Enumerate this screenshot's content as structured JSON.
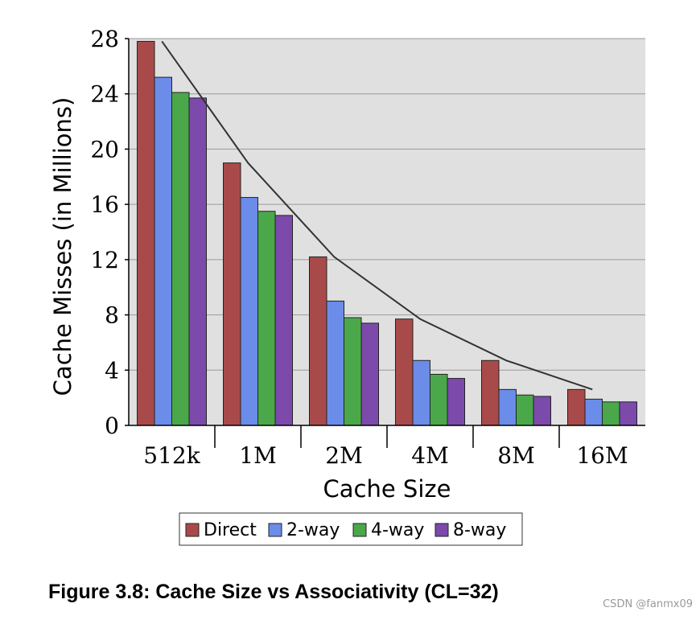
{
  "chart_data": {
    "type": "bar",
    "categories": [
      "512k",
      "1M",
      "2M",
      "4M",
      "8M",
      "16M"
    ],
    "series": [
      {
        "name": "Direct",
        "color": "#a94a4a",
        "values": [
          27.8,
          19.0,
          12.2,
          7.7,
          4.7,
          2.6
        ]
      },
      {
        "name": "2-way",
        "color": "#6b8ce8",
        "values": [
          25.2,
          16.5,
          9.0,
          4.7,
          2.6,
          1.9
        ]
      },
      {
        "name": "4-way",
        "color": "#4aa84a",
        "values": [
          24.1,
          15.5,
          7.8,
          3.7,
          2.2,
          1.7
        ]
      },
      {
        "name": "8-way",
        "color": "#7b4aaa",
        "values": [
          23.7,
          15.2,
          7.4,
          3.4,
          2.1,
          1.7
        ]
      }
    ],
    "line": {
      "color": "#333333",
      "values": [
        27.8,
        19.0,
        12.2,
        7.7,
        4.7,
        2.6
      ]
    },
    "xlabel": "Cache Size",
    "ylabel": "Cache Misses (in Millions)",
    "yticks": [
      0,
      4,
      8,
      12,
      16,
      20,
      24,
      28
    ],
    "ylim": [
      0,
      28
    ],
    "grid": true,
    "legend": "bottom",
    "background": "#e0e0e0"
  },
  "caption": "Figure 3.8: Cache Size vs Associativity (CL=32)",
  "watermark": "CSDN @fanmx09"
}
